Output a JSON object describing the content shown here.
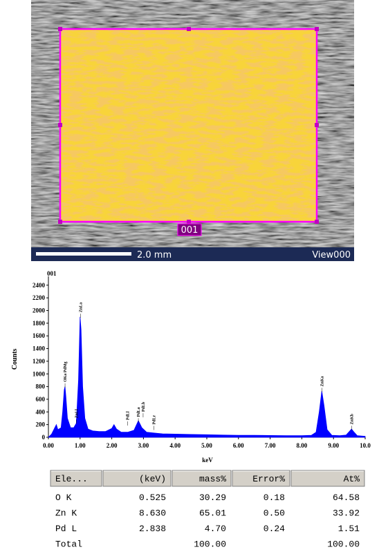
{
  "image": {
    "region_label": "001",
    "scale_label": "2.0 mm",
    "view_label": "View000"
  },
  "chart_data": {
    "type": "area",
    "title": "001",
    "xlabel": "keV",
    "ylabel": "Counts",
    "color": "#0000ff",
    "x": [
      0.0,
      0.1,
      0.2,
      0.25,
      0.3,
      0.4,
      0.45,
      0.5,
      0.525,
      0.55,
      0.6,
      0.7,
      0.8,
      0.88,
      0.95,
      1.0,
      1.03,
      1.08,
      1.15,
      1.25,
      1.4,
      1.6,
      1.8,
      2.0,
      2.07,
      2.15,
      2.3,
      2.5,
      2.7,
      2.84,
      2.95,
      3.1,
      3.3,
      3.6,
      4.0,
      4.5,
      5.0,
      5.5,
      6.0,
      6.5,
      7.0,
      7.5,
      8.0,
      8.3,
      8.45,
      8.55,
      8.63,
      8.7,
      8.8,
      8.95,
      9.2,
      9.4,
      9.5,
      9.57,
      9.65,
      9.75,
      10.0
    ],
    "values": [
      0,
      50,
      150,
      200,
      120,
      150,
      400,
      750,
      800,
      650,
      300,
      150,
      150,
      220,
      900,
      1900,
      1700,
      800,
      300,
      130,
      100,
      90,
      90,
      140,
      200,
      130,
      80,
      80,
      110,
      260,
      150,
      80,
      70,
      55,
      50,
      45,
      40,
      35,
      32,
      30,
      28,
      25,
      25,
      30,
      80,
      400,
      730,
      500,
      120,
      30,
      25,
      35,
      90,
      130,
      80,
      25,
      15
    ],
    "xlim": [
      0,
      10
    ],
    "ylim": [
      0,
      2540
    ],
    "xticks": [
      {
        "value": 0,
        "label": "0.00"
      },
      {
        "value": 1,
        "label": "1.00"
      },
      {
        "value": 2,
        "label": "2.00"
      },
      {
        "value": 3,
        "label": "3.00"
      },
      {
        "value": 4,
        "label": "4.00"
      },
      {
        "value": 5,
        "label": "5.00"
      },
      {
        "value": 6,
        "label": "6.00"
      },
      {
        "value": 7,
        "label": "7.00"
      },
      {
        "value": 8,
        "label": "8.00"
      },
      {
        "value": 9,
        "label": "9.00"
      },
      {
        "value": 10,
        "label": "10.0"
      }
    ],
    "yticks": [
      0,
      200,
      400,
      600,
      800,
      1000,
      1200,
      1400,
      1600,
      1800,
      2000,
      2200,
      2400
    ],
    "annotations": [
      {
        "text": "OKa PdMg",
        "x": 0.525,
        "y": 850
      },
      {
        "text": "ZnLl",
        "x": 0.88,
        "y": 280
      },
      {
        "text": "ZnLa",
        "x": 1.01,
        "y": 1950
      },
      {
        "text": "PdLl",
        "x": 2.5,
        "y": 250
      },
      {
        "text": "PdLa",
        "x": 2.84,
        "y": 300
      },
      {
        "text": "PdLb",
        "x": 2.99,
        "y": 380
      },
      {
        "text": "PdLr",
        "x": 3.33,
        "y": 180
      },
      {
        "text": "ZnKa",
        "x": 8.63,
        "y": 780
      },
      {
        "text": "ZnKb",
        "x": 9.57,
        "y": 180
      }
    ]
  },
  "table": {
    "header": [
      "Ele...",
      "(keV)",
      "mass%",
      "Error%",
      "At%"
    ],
    "rows": [
      [
        "O  K",
        "0.525",
        "30.29",
        "0.18",
        "64.58"
      ],
      [
        "Zn K",
        "8.630",
        "65.01",
        "0.50",
        "33.92"
      ],
      [
        "Pd L",
        "2.838",
        "4.70",
        "0.24",
        "1.51"
      ],
      [
        "Total",
        null,
        "100.00",
        null,
        "100.00"
      ]
    ]
  }
}
